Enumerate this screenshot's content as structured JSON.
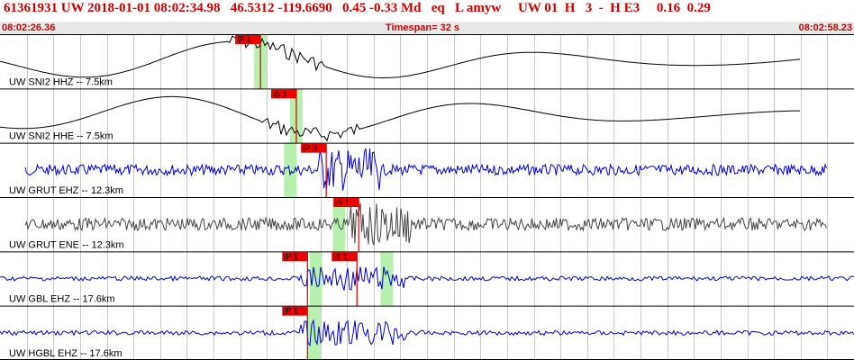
{
  "header": {
    "title": "61361931 UW 2018-01-01 08:02:34.98   46.5312 -119.6690   0.45 -0.33 Md   eq   L amyw     UW 01  H   3  -  H E3     0.16  0.29",
    "start_time": "08:02:26.36",
    "timespan": "Timespan=  32 s",
    "end_time": "08:02:58.23"
  },
  "traces": [
    {
      "label": "UW SNI2 HHZ -- 7.5km",
      "color": "#000000",
      "kind": "smooth",
      "picks": [
        {
          "label": "iP 1",
          "frac": 0.305,
          "green": 0.305
        }
      ]
    },
    {
      "label": "UW SNI2 HHE -- 7.5km",
      "color": "#000000",
      "kind": "smooth",
      "picks": [
        {
          "label": "iS 1",
          "frac": 0.347,
          "green": 0.347
        }
      ]
    },
    {
      "label": "UW GRUT EHZ -- 12.3km",
      "color": "#0000cc",
      "kind": "noise",
      "picks": [
        {
          "label": "iP 0",
          "frac": 0.382,
          "green": 0.34
        }
      ]
    },
    {
      "label": "UW GRUT ENE -- 12.3km",
      "color": "#444444",
      "kind": "noise",
      "picks": [
        {
          "label": "iS 1",
          "frac": 0.42,
          "green": 0.397
        }
      ]
    },
    {
      "label": "UW GBL EHZ -- 17.6km",
      "color": "#0000cc",
      "kind": "quiet",
      "picks": [
        {
          "label": "iP 1",
          "frac": 0.36,
          "green": 0.37
        },
        {
          "label": "iS 1",
          "frac": 0.418,
          "green": 0.453
        }
      ]
    },
    {
      "label": "UW HGBL EHZ -- 17.6km",
      "color": "#0000cc",
      "kind": "quiet",
      "picks": [
        {
          "label": "iP 1",
          "frac": 0.36,
          "green": 0.368
        }
      ]
    }
  ]
}
